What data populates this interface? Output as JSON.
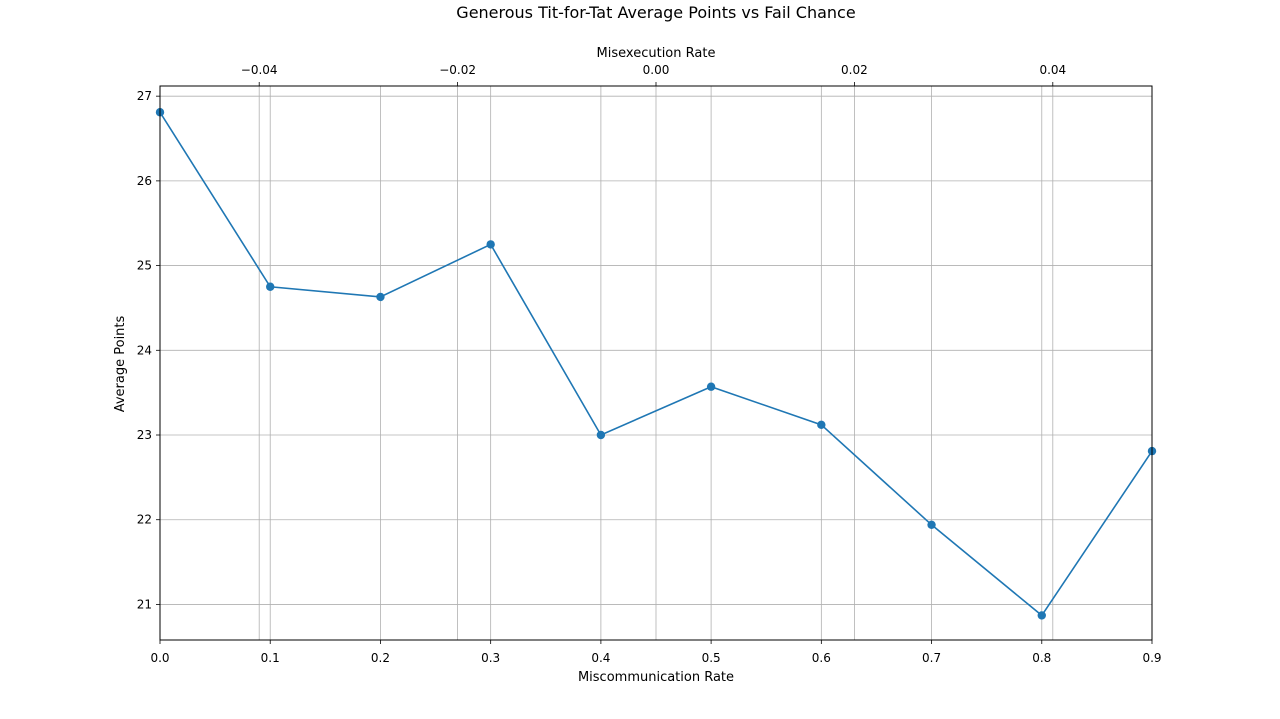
{
  "chart_data": {
    "type": "line",
    "title": "Generous Tit-for-Tat Average Points vs Fail Chance",
    "xlabel": "Miscommunication Rate",
    "ylabel": "Average Points",
    "x2label": "Misexecution Rate",
    "xlim": [
      0.0,
      0.9
    ],
    "ylim": [
      20.58,
      27.12
    ],
    "x2lim": [
      -0.05,
      0.05
    ],
    "x_ticks": [
      0.0,
      0.1,
      0.2,
      0.3,
      0.4,
      0.5,
      0.6,
      0.7,
      0.8,
      0.9
    ],
    "x_tick_labels": [
      "0.0",
      "0.1",
      "0.2",
      "0.3",
      "0.4",
      "0.5",
      "0.6",
      "0.7",
      "0.8",
      "0.9"
    ],
    "y_ticks": [
      21,
      22,
      23,
      24,
      25,
      26,
      27
    ],
    "y_tick_labels": [
      "21",
      "22",
      "23",
      "24",
      "25",
      "26",
      "27"
    ],
    "x2_ticks": [
      -0.04,
      -0.02,
      0.0,
      0.02,
      0.04
    ],
    "x2_tick_labels": [
      "−0.04",
      "−0.02",
      "0.00",
      "0.02",
      "0.04"
    ],
    "grid": true,
    "series": [
      {
        "color": "#1f77b4",
        "x": [
          0.0,
          0.1,
          0.2,
          0.3,
          0.4,
          0.5,
          0.6,
          0.7,
          0.8,
          0.9
        ],
        "y": [
          26.81,
          24.75,
          24.63,
          25.25,
          23.0,
          23.57,
          23.12,
          21.94,
          20.87,
          22.81
        ]
      }
    ]
  }
}
